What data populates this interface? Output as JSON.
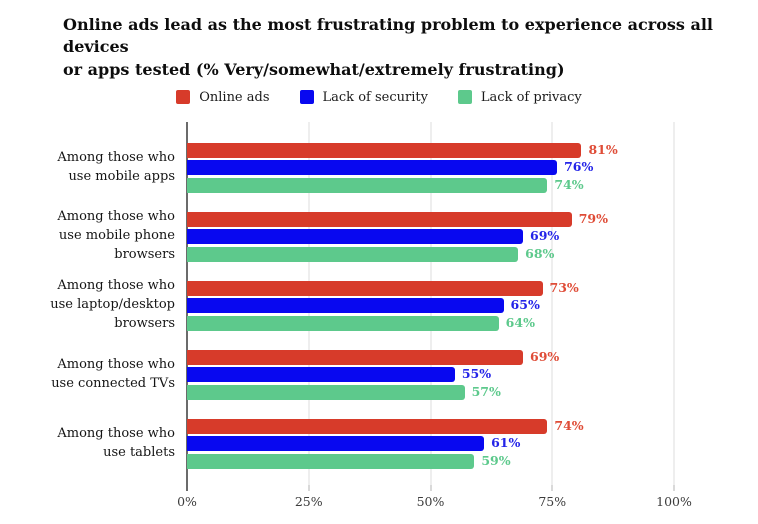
{
  "title": {
    "line1": "Online ads lead as the most frustrating problem to experience across all devices",
    "line2": "or apps tested (% Very/somewhat/extremely frustrating)"
  },
  "chart_data": {
    "type": "bar",
    "orientation": "horizontal",
    "title": "Online ads lead as the most frustrating problem to experience across all devices or apps tested (% Very/somewhat/extremely frustrating)",
    "categories": [
      "Among those who use mobile apps",
      "Among those who use mobile phone browsers",
      "Among those who use laptop/desktop browsers",
      "Among those who use connected TVs",
      "Among those who use tablets"
    ],
    "series": [
      {
        "name": "Online ads",
        "color": "#d73b2a",
        "label_color": "#df4c37",
        "values": [
          81,
          79,
          73,
          69,
          74
        ]
      },
      {
        "name": "Lack of security",
        "color": "#0808f0",
        "label_color": "#2424e8",
        "values": [
          76,
          69,
          65,
          55,
          61
        ]
      },
      {
        "name": "Lack of privacy",
        "color": "#5dc98c",
        "label_color": "#5dc98c",
        "values": [
          74,
          68,
          64,
          57,
          59
        ]
      }
    ],
    "value_suffix": "%",
    "xlim": [
      0,
      100
    ],
    "x_ticks": [
      {
        "value": 0,
        "label": "0%"
      },
      {
        "value": 25,
        "label": "25%"
      },
      {
        "value": 50,
        "label": "50%"
      },
      {
        "value": 75,
        "label": "75%"
      },
      {
        "value": 100,
        "label": "100%"
      }
    ],
    "grid": true,
    "legend_position": "top-center"
  },
  "style_colors": {
    "grid_line": "#dcdcdc",
    "axis_line": "#6b6b6b",
    "tick_mark": "#b3b3b3",
    "tick_label": "#3c3c3c",
    "background": "#ffffff",
    "title": "#0d0d0d"
  }
}
